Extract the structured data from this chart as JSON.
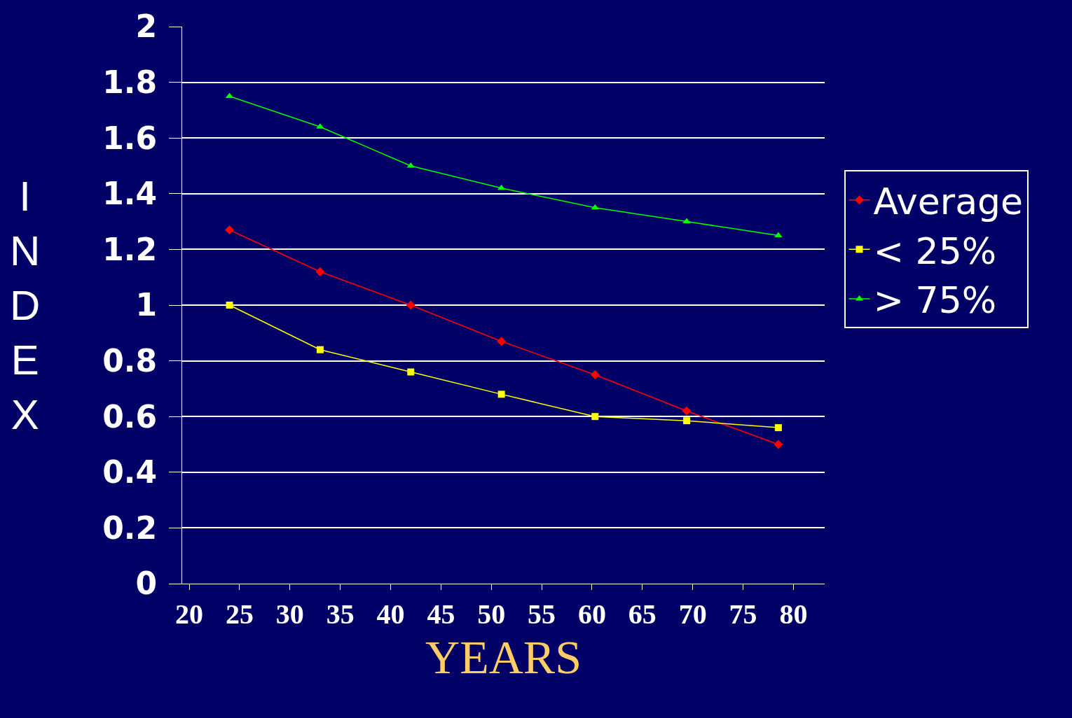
{
  "chart_data": {
    "type": "line",
    "xlabel": "YEARS",
    "ylabel": "INDEX",
    "x": [
      24,
      33,
      42,
      51,
      60.3,
      69.4,
      78.5
    ],
    "xlim": [
      19.3,
      83.1
    ],
    "xticks": [
      20,
      25,
      30,
      35,
      40,
      45,
      50,
      55,
      60,
      65,
      70,
      75,
      80
    ],
    "ylim": [
      0,
      2
    ],
    "yticks": [
      0,
      0.2,
      0.4,
      0.6,
      0.8,
      1,
      1.2,
      1.4,
      1.6,
      1.8,
      2
    ],
    "series": [
      {
        "name": "Average",
        "color": "#ff0000",
        "marker": "diamond",
        "values": [
          1.27,
          1.12,
          1.0,
          0.87,
          0.75,
          0.62,
          0.5
        ]
      },
      {
        "name": "< 25%",
        "color": "#ffff00",
        "marker": "square",
        "values": [
          1.0,
          0.84,
          0.76,
          0.68,
          0.6,
          0.585,
          0.56
        ]
      },
      {
        "name": "> 75%",
        "color": "#00ff00",
        "marker": "triangle",
        "values": [
          1.75,
          1.64,
          1.5,
          1.42,
          1.35,
          1.3,
          1.25
        ]
      }
    ],
    "grid": "y",
    "legend": "right",
    "line_style": "solid"
  }
}
